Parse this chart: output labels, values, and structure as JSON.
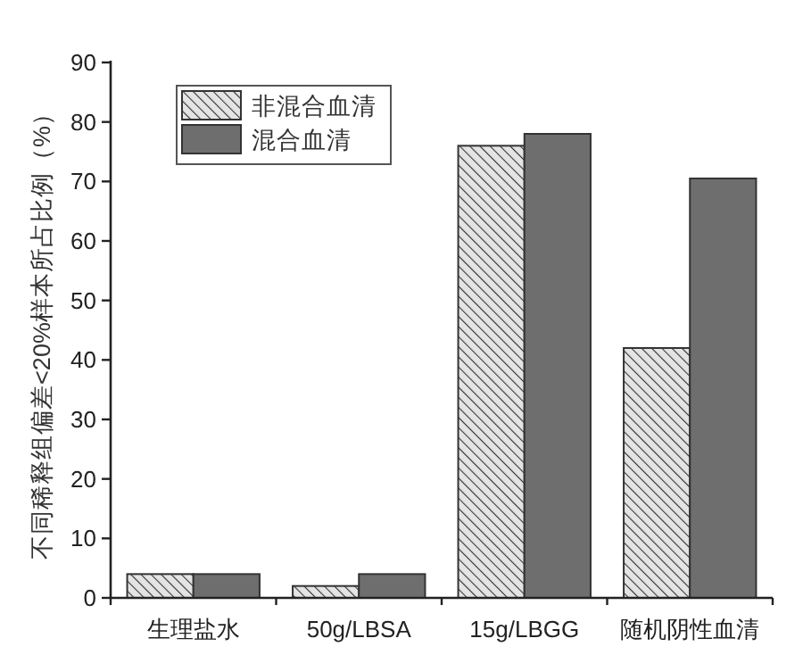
{
  "chart_data": {
    "type": "bar",
    "ylabel": "不同稀释组偏差<20%样本所占比例（%）",
    "categories": [
      "生理盐水",
      "50g/LBSA",
      "15g/LBGG",
      "随机阴性血清"
    ],
    "series": [
      {
        "name": "非混合血清",
        "color": "#333333",
        "values": [
          4,
          2,
          76,
          42
        ]
      },
      {
        "name": "混合血清",
        "color": "#6e6e6e",
        "values": [
          4,
          4,
          78,
          70.5
        ]
      }
    ],
    "ylim": [
      0,
      90
    ],
    "yticks": [
      0,
      10,
      20,
      30,
      40,
      50,
      60,
      70,
      80,
      90
    ],
    "legend": "top left",
    "grid": false
  }
}
